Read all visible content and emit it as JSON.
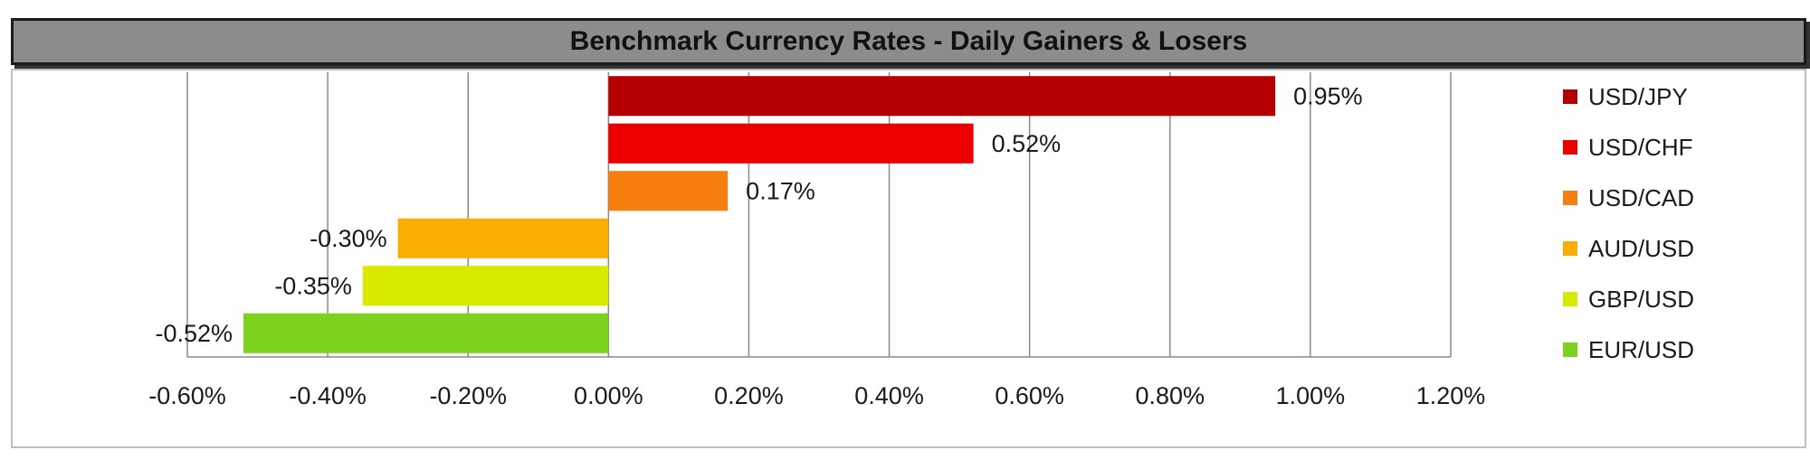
{
  "title": "Benchmark Currency Rates - Daily Gainers & Losers",
  "chart_data": {
    "type": "bar",
    "orientation": "horizontal",
    "categories": [
      "USD/JPY",
      "USD/CHF",
      "USD/CAD",
      "AUD/USD",
      "GBP/USD",
      "EUR/USD"
    ],
    "values": [
      0.95,
      0.52,
      0.17,
      -0.3,
      -0.35,
      -0.52
    ],
    "data_labels": [
      "0.95%",
      "0.52%",
      "0.17%",
      "-0.30%",
      "-0.35%",
      "-0.52%"
    ],
    "colors": [
      "#b50000",
      "#ee0000",
      "#f77f0f",
      "#f8ad00",
      "#d7ea00",
      "#7dd21e"
    ],
    "xlim": [
      -0.6,
      1.2
    ],
    "x_ticks": [
      -0.6,
      -0.4,
      -0.2,
      0.0,
      0.2,
      0.4,
      0.6,
      0.8,
      1.0,
      1.2
    ],
    "x_tick_labels": [
      "-0.60%",
      "-0.40%",
      "-0.20%",
      "0.00%",
      "0.20%",
      "0.40%",
      "0.60%",
      "0.80%",
      "1.00%",
      "1.20%"
    ],
    "grid": "vertical",
    "legend": "right"
  }
}
